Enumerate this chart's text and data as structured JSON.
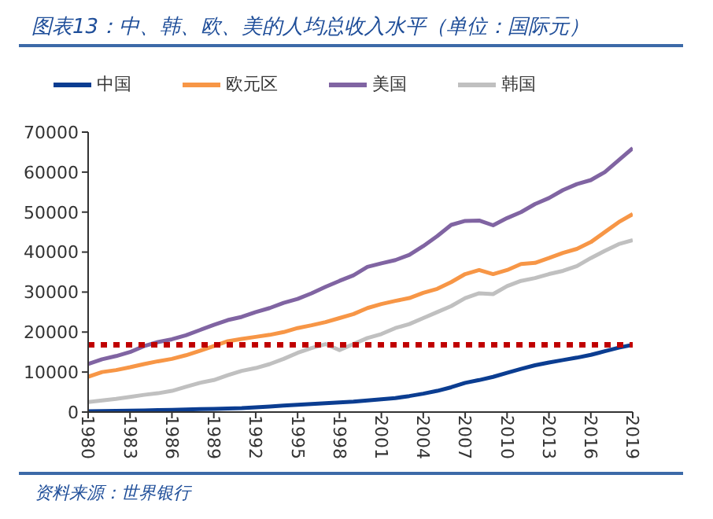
{
  "chart_data": {
    "type": "line",
    "title": "图表13：中、韩、欧、美的人均总收入水平（单位：国际元）",
    "x": [
      1980,
      1981,
      1982,
      1983,
      1984,
      1985,
      1986,
      1987,
      1988,
      1989,
      1990,
      1991,
      1992,
      1993,
      1994,
      1995,
      1996,
      1997,
      1998,
      1999,
      2000,
      2001,
      2002,
      2003,
      2004,
      2005,
      2006,
      2007,
      2008,
      2009,
      2010,
      2011,
      2012,
      2013,
      2014,
      2015,
      2016,
      2017,
      2018,
      2019
    ],
    "series": [
      {
        "name": "中国",
        "color": "#0b3d91",
        "values": [
          200,
          250,
          300,
          350,
          400,
          500,
          550,
          650,
          750,
          800,
          900,
          1000,
          1200,
          1400,
          1600,
          1800,
          2000,
          2200,
          2400,
          2600,
          2900,
          3200,
          3500,
          4000,
          4600,
          5300,
          6200,
          7300,
          8000,
          8800,
          9800,
          10800,
          11700,
          12400,
          13000,
          13600,
          14300,
          15200,
          16100,
          16800
        ]
      },
      {
        "name": "韩国",
        "color": "#c0c0c0",
        "values": [
          2500,
          2900,
          3300,
          3800,
          4300,
          4700,
          5300,
          6300,
          7300,
          8000,
          9200,
          10300,
          11000,
          12000,
          13300,
          14800,
          16000,
          17000,
          15500,
          17000,
          18500,
          19500,
          21000,
          22000,
          23500,
          25000,
          26500,
          28500,
          29700,
          29500,
          31500,
          32800,
          33500,
          34500,
          35300,
          36500,
          38500,
          40300,
          42000,
          43000
        ]
      },
      {
        "name": "欧元区",
        "color": "#f79646",
        "values": [
          8800,
          10000,
          10500,
          11200,
          12000,
          12700,
          13300,
          14200,
          15300,
          16500,
          17700,
          18300,
          18800,
          19300,
          20000,
          21000,
          21700,
          22500,
          23500,
          24500,
          26000,
          27000,
          27800,
          28500,
          29800,
          30800,
          32500,
          34500,
          35500,
          34500,
          35500,
          37000,
          37300,
          38500,
          39800,
          40800,
          42500,
          45000,
          47500,
          49500
        ]
      },
      {
        "name": "美国",
        "color": "#8064a2",
        "values": [
          12000,
          13200,
          14000,
          15000,
          16500,
          17500,
          18200,
          19200,
          20500,
          21800,
          23000,
          23800,
          25000,
          26000,
          27300,
          28300,
          29700,
          31300,
          32800,
          34200,
          36300,
          37200,
          38000,
          39300,
          41500,
          44000,
          46800,
          47800,
          47900,
          46700,
          48500,
          50000,
          52000,
          53500,
          55500,
          57000,
          58000,
          60000,
          63000,
          66000
        ]
      }
    ],
    "xlim": [
      1980,
      2019
    ],
    "xticks": [
      1980,
      1983,
      1986,
      1989,
      1992,
      1995,
      1998,
      2001,
      2004,
      2007,
      2010,
      2013,
      2016,
      2019
    ],
    "ylim": [
      0,
      70000
    ],
    "yticks": [
      0,
      10000,
      20000,
      30000,
      40000,
      50000,
      60000,
      70000
    ],
    "ref_lines": [
      {
        "axis": "y",
        "value": 16800,
        "color": "#c00000",
        "line_style": "dotted"
      }
    ],
    "grid": false,
    "legend": "top",
    "marker": "none",
    "line_style": "solid",
    "annotations": [
      "资料来源：世界银行"
    ]
  }
}
